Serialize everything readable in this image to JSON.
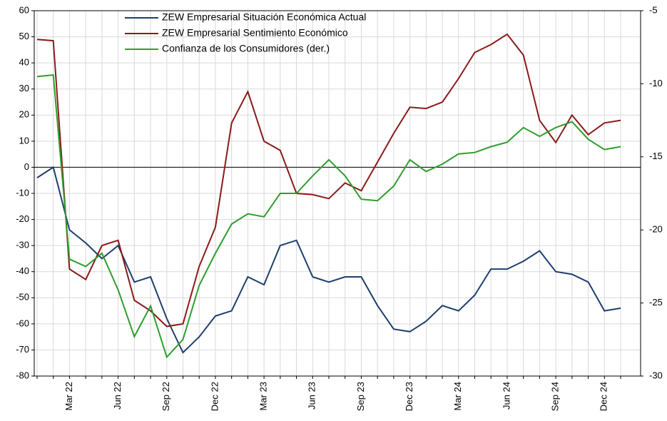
{
  "chart_data": {
    "type": "line",
    "categories": [
      null,
      null,
      "Mar 22",
      null,
      null,
      "Jun 22",
      null,
      null,
      "Sep 22",
      null,
      null,
      "Dec 22",
      null,
      null,
      "Mar 23",
      null,
      null,
      "Jun 23",
      null,
      null,
      "Sep 23",
      null,
      null,
      "Dec 23",
      null,
      null,
      "Mar 24",
      null,
      null,
      "Jun 24",
      null,
      null,
      "Sep 24",
      null,
      null,
      "Dec 24",
      null
    ],
    "series": [
      {
        "name": "ZEW Empresarial Situación Económica Actual",
        "color": "#1f3f6e",
        "values": [
          -4,
          0,
          -24,
          -29,
          -35,
          -30,
          -44,
          -42,
          -58,
          -71,
          -65,
          -57,
          -55,
          -42,
          -45,
          -30,
          -28,
          -42,
          -44,
          -42,
          -42,
          -53,
          -62,
          -63,
          -59,
          -53,
          -55,
          -49,
          -39,
          -39,
          -36,
          -32,
          -40,
          -41,
          -44,
          -55,
          -54
        ]
      },
      {
        "name": "ZEW Empresarial Sentimiento Económico",
        "color": "#8b1a1a",
        "values": [
          49,
          48.5,
          -39,
          -43,
          -30,
          -28,
          -51,
          -55,
          -61,
          -60,
          -38,
          -23,
          17,
          29,
          10,
          6.5,
          -10,
          -10.5,
          -12,
          -6,
          -9,
          2,
          13,
          23,
          22.5,
          25,
          34,
          44,
          47,
          51,
          43,
          18,
          9.5,
          20,
          12.5,
          17,
          18
        ]
      },
      {
        "name": "Confianza de los Consumidores (der.)",
        "color": "#2e9e2e",
        "axis": "y2",
        "values": [
          -9.5,
          -9.4,
          -22,
          -22.5,
          -21.6,
          -24.1,
          -27.3,
          -25.2,
          -28.7,
          -27.5,
          -23.8,
          -21.6,
          -19.6,
          -18.9,
          -19.1,
          -17.5,
          -17.5,
          -16.3,
          -15.2,
          -16.3,
          -17.9,
          -18,
          -17,
          -15.2,
          -16,
          -15.5,
          -14.8,
          -14.7,
          -14.3,
          -14,
          -13,
          -13.6,
          -13,
          -12.6,
          -13.8,
          -14.5,
          -14.3
        ]
      }
    ],
    "ylim": [
      -80,
      60
    ],
    "yticks": [
      -80,
      -70,
      -60,
      -50,
      -40,
      -30,
      -20,
      -10,
      0,
      10,
      20,
      30,
      40,
      50,
      60
    ],
    "y2lim": [
      -30,
      -5
    ],
    "y2ticks": [
      -30,
      -25,
      -20,
      -15,
      -10,
      -5
    ],
    "grid": true
  }
}
